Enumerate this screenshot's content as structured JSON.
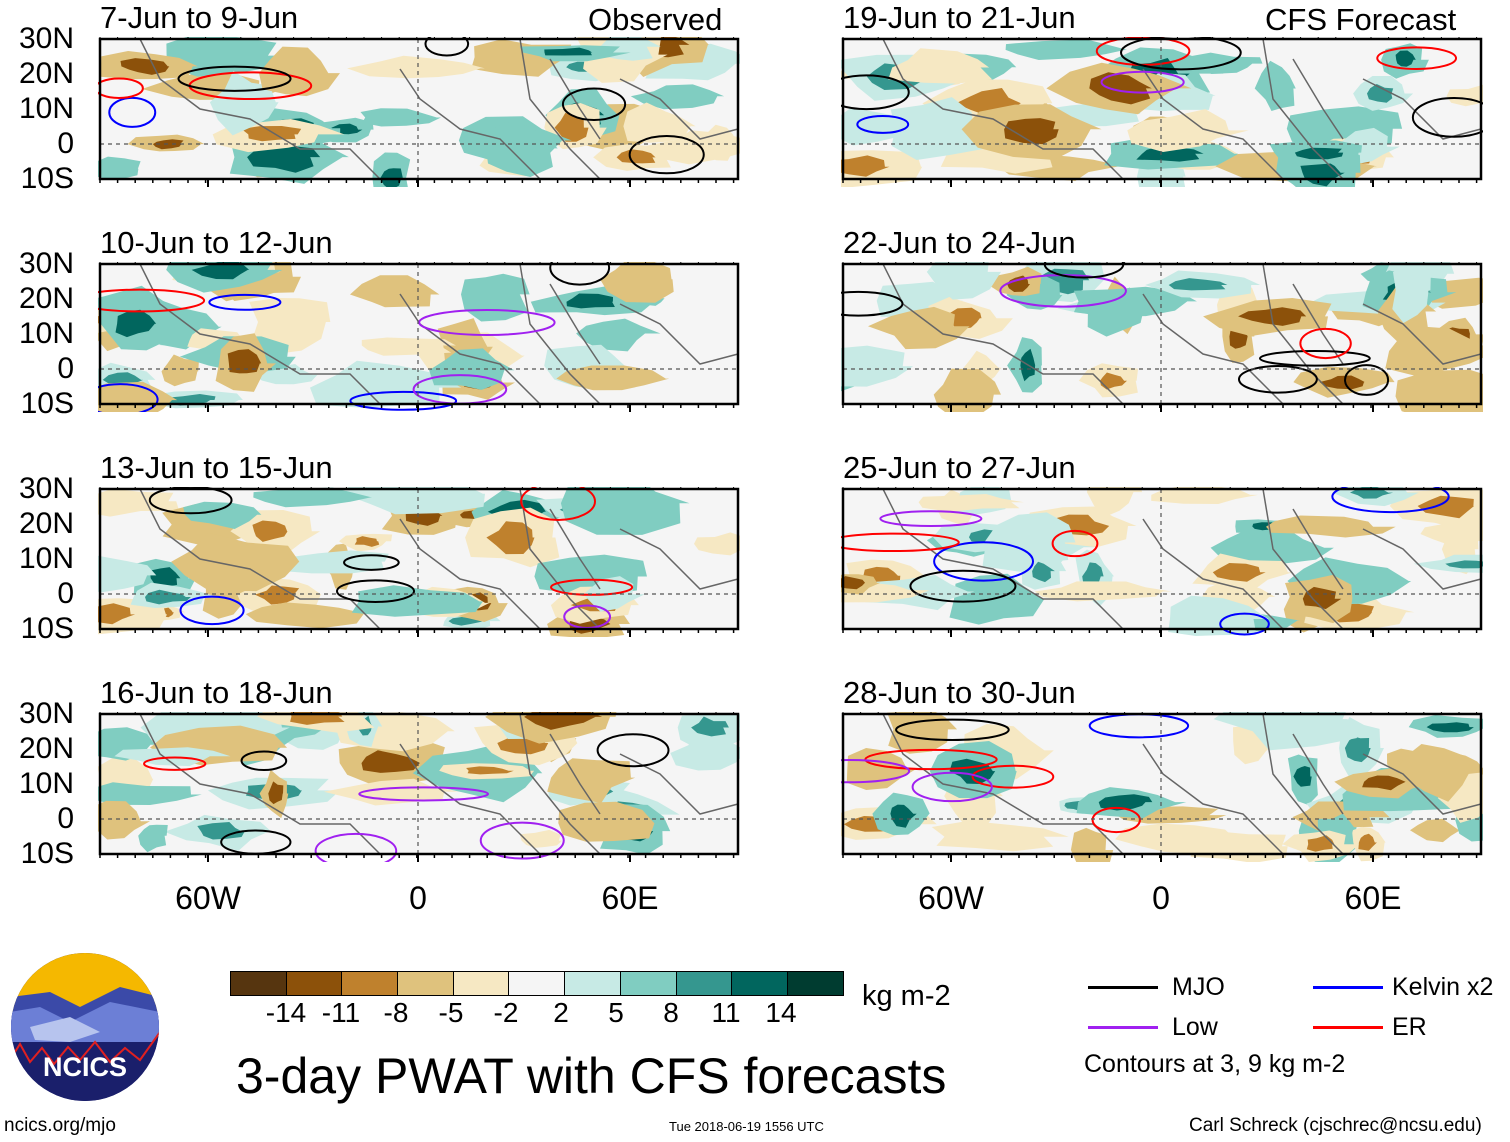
{
  "header": {
    "left_label": "Observed",
    "right_label": "CFS Forecast"
  },
  "panels": [
    {
      "title": "7-Jun to 9-Jun",
      "group": "observed"
    },
    {
      "title": "10-Jun to 12-Jun",
      "group": "observed"
    },
    {
      "title": "13-Jun to 15-Jun",
      "group": "observed"
    },
    {
      "title": "16-Jun to 18-Jun",
      "group": "observed"
    },
    {
      "title": "19-Jun to 21-Jun",
      "group": "forecast"
    },
    {
      "title": "22-Jun to 24-Jun",
      "group": "forecast"
    },
    {
      "title": "25-Jun to 27-Jun",
      "group": "forecast"
    },
    {
      "title": "28-Jun to 30-Jun",
      "group": "forecast"
    }
  ],
  "axes": {
    "lat_labels": [
      "30N",
      "20N",
      "10N",
      "0",
      "10S"
    ],
    "lon_labels": [
      "60W",
      "0",
      "60E"
    ]
  },
  "colorbar": {
    "labels": [
      "-14",
      "-11",
      "-8",
      "-5",
      "-2",
      "2",
      "5",
      "8",
      "11",
      "14"
    ],
    "colors": [
      "#56350f",
      "#8c510a",
      "#bf812d",
      "#dfc27d",
      "#f6e8c3",
      "#f5f5f5",
      "#c7eae5",
      "#80cdc1",
      "#35978f",
      "#01665e",
      "#003c30"
    ],
    "units": "kg m-2"
  },
  "legend": {
    "items": [
      {
        "label": "MJO",
        "color": "#000000"
      },
      {
        "label": "Kelvin x2",
        "color": "#0000ff"
      },
      {
        "label": "Low",
        "color": "#a020f0"
      },
      {
        "label": "ER",
        "color": "#ff0000"
      }
    ],
    "note": "Contours at 3, 9 kg m-2"
  },
  "title": "3-day PWAT with CFS forecasts",
  "logo_text": "NCICS",
  "footer": {
    "left": "ncics.org/mjo",
    "center": "Tue 2018-06-19 1556 UTC",
    "right": "Carl Schreck (cjschrec@ncsu.edu)"
  },
  "chart_data": {
    "type": "heatmap",
    "title": "3-day PWAT with CFS forecasts",
    "variable": "PWAT anomaly",
    "units": "kg m-2",
    "lat_range": [
      "10S",
      "30N"
    ],
    "lon_ticks": [
      "60W",
      "0",
      "60E"
    ],
    "contour_levels": [
      3,
      9
    ],
    "contour_series": [
      "MJO",
      "Kelvin x2",
      "Low",
      "ER"
    ]
  }
}
